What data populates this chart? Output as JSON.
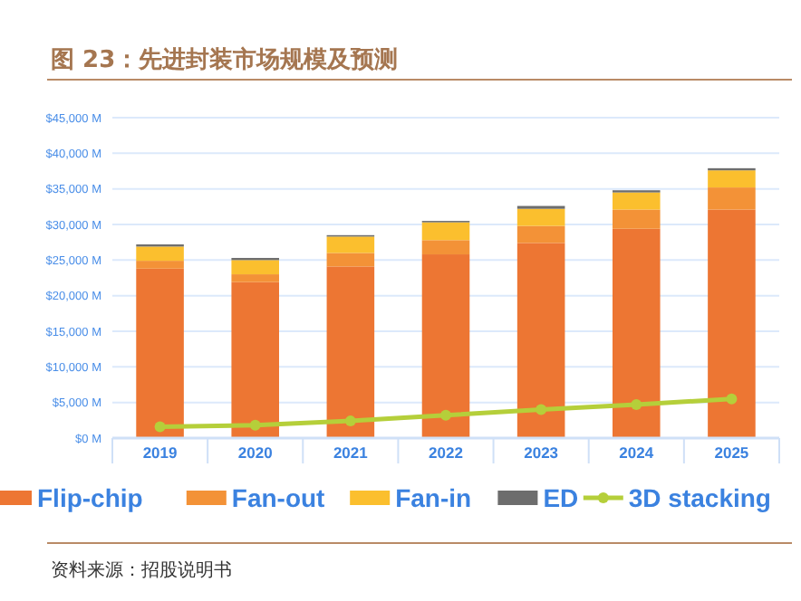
{
  "chart_data": {
    "type": "bar",
    "title": "图 23：先进封装市场规模及预测",
    "categories": [
      "2019",
      "2020",
      "2021",
      "2022",
      "2023",
      "2024",
      "2025"
    ],
    "stacked": true,
    "series": [
      {
        "name": "Flip-chip",
        "color": "#ed7633",
        "values": [
          23800,
          21900,
          24100,
          25800,
          27400,
          29400,
          32100
        ]
      },
      {
        "name": "Fan-out",
        "color": "#f39237",
        "values": [
          1100,
          1100,
          1900,
          2000,
          2400,
          2700,
          3100
        ]
      },
      {
        "name": "Fan-in",
        "color": "#fbbf2e",
        "values": [
          2000,
          2000,
          2300,
          2500,
          2400,
          2400,
          2400
        ]
      },
      {
        "name": "ED",
        "color": "#6d6d6d",
        "values": [
          300,
          300,
          200,
          200,
          400,
          300,
          300
        ]
      },
      {
        "name": "3D stacking",
        "type": "line",
        "color": "#b5cf3a",
        "marker": "circle",
        "values": [
          1600,
          1800,
          2400,
          3200,
          4000,
          4700,
          5500
        ]
      }
    ],
    "ylim": [
      0,
      45000
    ],
    "yticks": [
      {
        "value": 0,
        "label": "$0 M"
      },
      {
        "value": 5000,
        "label": "$5,000 M"
      },
      {
        "value": 10000,
        "label": "$10,000 M"
      },
      {
        "value": 15000,
        "label": "$15,000 M"
      },
      {
        "value": 20000,
        "label": "$20,000 M"
      },
      {
        "value": 25000,
        "label": "$25,000 M"
      },
      {
        "value": 30000,
        "label": "$30,000 M"
      },
      {
        "value": 35000,
        "label": "$35,000 M"
      },
      {
        "value": 40000,
        "label": "$40,000 M"
      },
      {
        "value": 45000,
        "label": "$45,000 M"
      }
    ],
    "grid": "y",
    "legend": "bottom",
    "annotations": [
      "资料来源：招股说明书"
    ]
  }
}
